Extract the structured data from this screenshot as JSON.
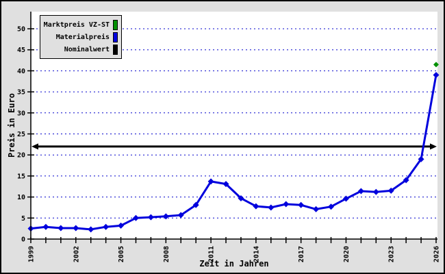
{
  "window": {
    "background_color": "#e0e0e0",
    "plot_background_color": "#ffffff",
    "border_color": "#000000"
  },
  "axes": {
    "x_title": "Zeit in Jahren",
    "y_title": "Preis in Euro",
    "grid_color": "#0000cc",
    "axis_color": "#000000"
  },
  "legend": {
    "items": [
      {
        "label": "Marktpreis VZ-ST",
        "color": "#009000",
        "swatch": "green-vertical-bar"
      },
      {
        "label": "Materialpreis",
        "color": "#0000dd",
        "swatch": "blue-vertical-bar"
      },
      {
        "label": "Nominalwert",
        "color": "#000000",
        "swatch": "black-vertical-bar"
      }
    ]
  },
  "chart_data": {
    "type": "line",
    "title": "",
    "xlabel": "Zeit in Jahren",
    "ylabel": "Preis in Euro",
    "xlim": [
      1999,
      2026
    ],
    "ylim": [
      0,
      54
    ],
    "y_ticks": [
      0,
      5,
      10,
      15,
      20,
      25,
      30,
      35,
      40,
      45,
      50
    ],
    "x_ticks_step_years": 1,
    "x_labeled_years": [
      1999,
      2002,
      2005,
      2008,
      2011,
      2014,
      2017,
      2020,
      2023,
      2026
    ],
    "grid": "horizontal-dotted",
    "legend_position": "top-left",
    "series": [
      {
        "name": "Materialpreis",
        "style": "line-with-filled-diamond-markers",
        "color": "#0000dd",
        "x": [
          1999,
          2000,
          2001,
          2002,
          2003,
          2004,
          2005,
          2006,
          2007,
          2008,
          2009,
          2010,
          2011,
          2012,
          2013,
          2014,
          2015,
          2016,
          2017,
          2018,
          2019,
          2020,
          2021,
          2022,
          2023,
          2024,
          2025,
          2026
        ],
        "y": [
          2.5,
          2.9,
          2.6,
          2.6,
          2.3,
          2.9,
          3.2,
          5.0,
          5.2,
          5.4,
          5.7,
          8.1,
          13.7,
          13.1,
          9.7,
          7.8,
          7.5,
          8.3,
          8.1,
          7.1,
          7.7,
          9.6,
          11.4,
          11.2,
          11.5,
          14.0,
          19.0,
          39.0
        ]
      },
      {
        "name": "Marktpreis VZ-ST",
        "style": "single-filled-diamond-point",
        "color": "#009000",
        "x": [
          2026
        ],
        "y": [
          41.5
        ]
      },
      {
        "name": "Nominalwert",
        "style": "horizontal-line-double-arrow",
        "color": "#000000",
        "value": 22
      }
    ]
  }
}
